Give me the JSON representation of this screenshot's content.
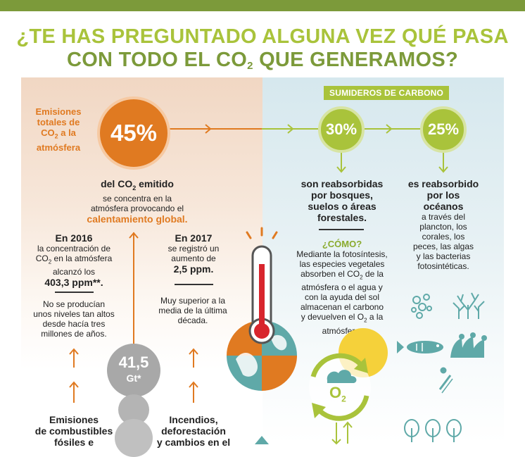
{
  "header": {
    "title_line1": "¿TE HAS PREGUNTADO ALGUNA VEZ QUÉ PASA",
    "title_line2_a": "CON TODO EL CO",
    "title_line2_sub": "2",
    "title_line2_b": " QUE GENERAMOS?"
  },
  "left": {
    "emissions_label_1": "Emisiones",
    "emissions_label_2": "totales de",
    "emissions_label_3a": "CO",
    "emissions_label_3sub": "2",
    "emissions_label_3b": " a la",
    "emissions_label_4": "atmósfera",
    "percent": "45%",
    "desc_title_a": "del CO",
    "desc_title_sub": "2",
    "desc_title_b": " emitido",
    "desc_line1": "se concentra en la",
    "desc_line2": "atmósfera provocando el",
    "desc_highlight": "calentamiento global.",
    "y2016_title": "En 2016",
    "y2016_l1": "la concentración de",
    "y2016_l2a": "CO",
    "y2016_l2sub": "2",
    "y2016_l2b": " en la atmósfera",
    "y2016_l3": "alcanzó los",
    "y2016_value": "403,3 ppm**.",
    "y2016_n1": "No se producían",
    "y2016_n2": "unos niveles tan altos",
    "y2016_n3": "desde hacía tres",
    "y2016_n4": "millones de años.",
    "y2017_title": "En 2017",
    "y2017_l1": "se registró un",
    "y2017_l2": "aumento de",
    "y2017_value": "2,5 ppm.",
    "y2017_n1": "Muy superior a la",
    "y2017_n2": "media de la última",
    "y2017_n3": "década.",
    "gt_value": "41,5",
    "gt_unit": "Gt*",
    "bottom_left_1": "Emisiones",
    "bottom_left_2": "de combustibles",
    "bottom_left_3": "fósiles e",
    "bottom_right_1": "Incendios,",
    "bottom_right_2": "deforestación",
    "bottom_right_3": "y cambios en el"
  },
  "right": {
    "badge": "SUMIDEROS DE CARBONO",
    "forest_percent": "30%",
    "ocean_percent": "25%",
    "forest_t1": "son reabsorbidas",
    "forest_t2": "por bosques,",
    "forest_t3": "suelos o áreas",
    "forest_t4": "forestales.",
    "como": "¿CÓMO?",
    "como_l1": "Mediante la fotosíntesis,",
    "como_l2": "las especies vegetales",
    "como_l3a": "absorben el CO",
    "como_l3sub": "2",
    "como_l3b": " de la",
    "como_l4": "atmósfera o el agua y",
    "como_l5": "con la ayuda del sol",
    "como_l6": "almacenan el carbono",
    "como_l7a": "y devuelven el O",
    "como_l7sub": "2",
    "como_l7b": " a la",
    "como_l8": "atmósfera.",
    "ocean_t1": "es reabsorbido",
    "ocean_t2": "por los",
    "ocean_t3": "océanos",
    "ocean_l1": "a través del",
    "ocean_l2": "plancton, los",
    "ocean_l3": "corales, los",
    "ocean_l4": "peces, las algas",
    "ocean_l5": "y las bacterias",
    "ocean_l6": "fotosintéticas.",
    "o2_label": "O",
    "o2_sub": "2"
  },
  "colors": {
    "orange": "#e07a21",
    "green_light": "#a9c33b",
    "green_dark": "#7c9a3a",
    "teal": "#5fa9a8"
  }
}
